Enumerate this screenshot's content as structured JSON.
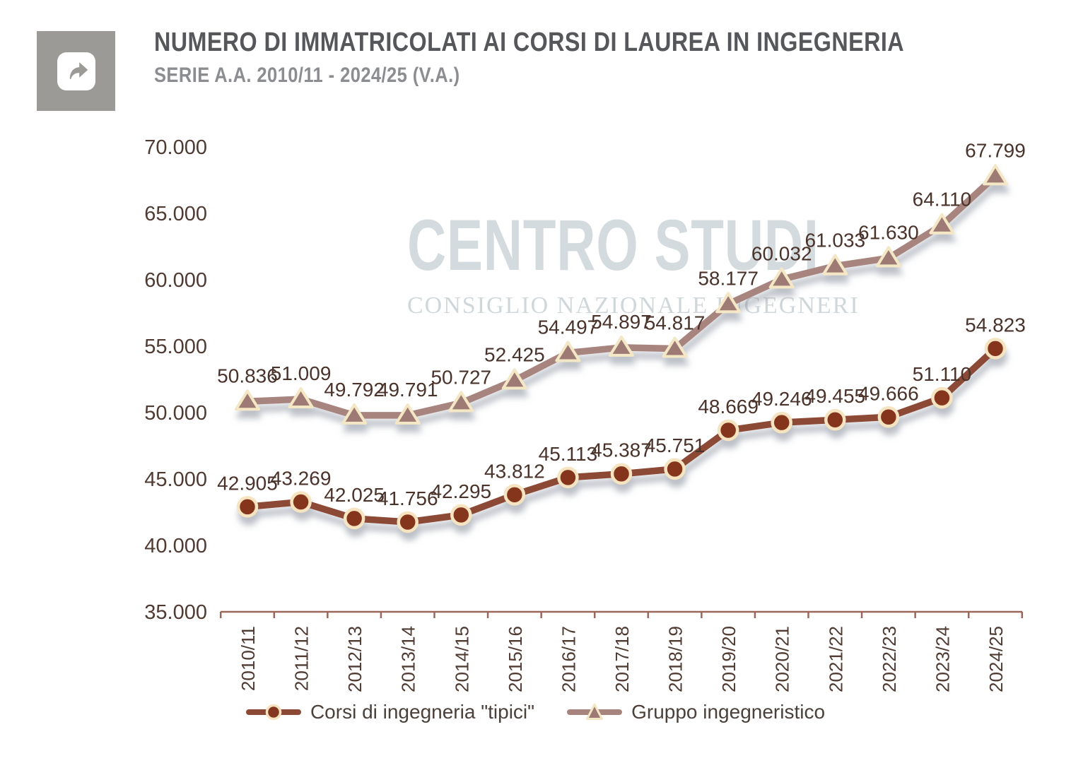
{
  "header": {
    "title": "NUMERO DI IMMATRICOLATI AI CORSI DI LAUREA IN INGEGNERIA",
    "subtitle": "SERIE A.A. 2010/11 - 2024/25  (V.A.)"
  },
  "watermark": {
    "line1": "CENTRO STUDI",
    "line2": "CONSIGLIO NAZIONALE INGEGNERI"
  },
  "chart_data": {
    "type": "line",
    "title": "NUMERO DI IMMATRICOLATI AI CORSI DI LAUREA IN INGEGNERIA",
    "subtitle": "SERIE A.A. 2010/11 - 2024/25 (V.A.)",
    "xlabel": "",
    "ylabel": "",
    "categories": [
      "2010/11",
      "2011/12",
      "2012/13",
      "2013/14",
      "2014/15",
      "2015/16",
      "2016/17",
      "2017/18",
      "2018/19",
      "2019/20",
      "2020/21",
      "2021/22",
      "2022/23",
      "2023/24",
      "2024/25"
    ],
    "series": [
      {
        "name": "Corsi di ingegneria \"tipici\"",
        "marker": "circle",
        "color": "#8C4A36",
        "marker_fill": "#84361F",
        "marker_stroke": "#F6E3C0",
        "values": [
          42905,
          43269,
          42025,
          41756,
          42295,
          43812,
          45113,
          45387,
          45751,
          48669,
          49246,
          49455,
          49666,
          51110,
          54823
        ]
      },
      {
        "name": "Gruppo ingegneristico",
        "marker": "triangle",
        "color": "#A8847E",
        "marker_fill": "#9D7A73",
        "marker_stroke": "#F3E7C6",
        "values": [
          50836,
          51009,
          49792,
          49791,
          50727,
          52425,
          54497,
          54897,
          54817,
          58177,
          60032,
          61033,
          61630,
          64110,
          67799
        ]
      }
    ],
    "ylim": [
      35000,
      70000
    ],
    "ytick_step": 5000,
    "ytick_labels": [
      "35.000",
      "40.000",
      "45.000",
      "50.000",
      "55.000",
      "60.000",
      "65.000",
      "70.000"
    ],
    "number_format": "thousands-dot",
    "grid": false,
    "legend_position": "bottom"
  },
  "colors": {
    "axis": "#9C675B",
    "tick_label": "#503B33",
    "data_label": "#4A332B",
    "title": "#56575A",
    "subtitle": "#8B8D90",
    "watermark": "#D3DADE",
    "legend_text": "#4C403A",
    "icon_tile": "#9B9A97"
  }
}
